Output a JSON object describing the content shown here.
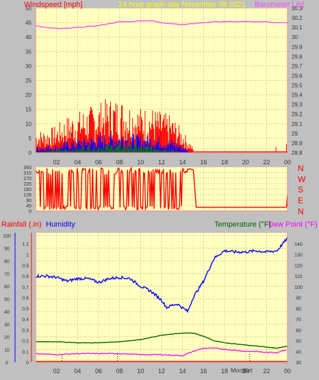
{
  "header": {
    "windspeed_label": "Windspeed [mph]",
    "title": "24 hour graph day   November 08 2021",
    "barometer_label": "Barometer [.in]"
  },
  "colors": {
    "plot_bg": "#ffffc0",
    "grid": "#d8c890",
    "wind_gust": "#ff0000",
    "wind_avg": "#0000ff",
    "wind_low": "#008000",
    "barometer": "#ff40ff",
    "direction": "#ff0000",
    "humidity": "#0000ff",
    "temperature": "#006400",
    "dewpoint": "#ff00ff",
    "title": "#ffff00",
    "rain": "#ff0000"
  },
  "lower_header": {
    "rainfall_label": "Rainfall (.in)",
    "humidity_label": "Humidity",
    "temperature_label": "Temperature (°F)",
    "dewpoint_label": "Dew Point (°F)"
  },
  "compass": [
    "N",
    "W",
    "S",
    "E",
    "N"
  ],
  "annotations": [
    "Moon",
    "Set"
  ],
  "chart_data": [
    {
      "type": "line",
      "id": "wind",
      "x_ticks": [
        "02",
        "04",
        "06",
        "08",
        "10",
        "12",
        "14",
        "16",
        "18",
        "20",
        "22",
        "00"
      ],
      "left_axis": {
        "label": "Windspeed [mph]",
        "ylim": [
          0,
          50
        ],
        "ticks": [
          0,
          5,
          10,
          15,
          20,
          25,
          30,
          35,
          40,
          45,
          50
        ]
      },
      "right_axis": {
        "label": "Barometer [.in]",
        "ylim": [
          28.8,
          30.3
        ],
        "ticks": [
          "28.8",
          "28.9",
          "29",
          "29.1",
          "29.2",
          "29.3",
          "29.4",
          "29.5",
          "29.6",
          "29.7",
          "29.8",
          "29.9",
          "30",
          "30.1",
          "30.2",
          "30.3"
        ]
      },
      "barometer": {
        "x": [
          0,
          1,
          2,
          3,
          4,
          5,
          6,
          7,
          8,
          9,
          10,
          11,
          12,
          13,
          14,
          15,
          16,
          17,
          18,
          19,
          20,
          21,
          22,
          23,
          24
        ],
        "y": [
          30.12,
          30.1,
          30.09,
          30.09,
          30.1,
          30.11,
          30.12,
          30.14,
          30.16,
          30.16,
          30.17,
          30.17,
          30.15,
          30.14,
          30.13,
          30.14,
          30.15,
          30.16,
          30.16,
          30.16,
          30.16,
          30.16,
          30.16,
          30.15,
          30.15
        ]
      },
      "wind_gust_envelope": {
        "x": [
          0,
          1,
          2,
          3,
          4,
          5,
          6,
          7,
          8,
          9,
          10,
          11,
          12,
          13,
          14,
          14.8,
          15.2
        ],
        "y": [
          5,
          5,
          6,
          8,
          9,
          10,
          11,
          12,
          12,
          11,
          10,
          10,
          9,
          8,
          5,
          2,
          0
        ]
      },
      "wind_avg_envelope": {
        "x": [
          0,
          1,
          2,
          3,
          4,
          5,
          6,
          7,
          8,
          9,
          10,
          11,
          12,
          13,
          14,
          14.8
        ],
        "y": [
          1.5,
          2,
          2,
          3,
          3.5,
          4,
          4.5,
          5,
          5,
          5,
          4.5,
          4.5,
          4,
          3.5,
          2,
          0
        ]
      },
      "wind_low_envelope": {
        "x": [
          0,
          1,
          2,
          3,
          4,
          5,
          6,
          7,
          8,
          9,
          10,
          11,
          12,
          13,
          14
        ],
        "y": [
          0.5,
          0.5,
          1,
          1,
          1.5,
          2,
          2,
          2.5,
          2.5,
          2.5,
          2,
          2,
          1.5,
          1,
          0
        ]
      }
    },
    {
      "type": "line",
      "id": "direction",
      "left_axis": {
        "ylim": [
          0,
          360
        ],
        "ticks": [
          0,
          45,
          90,
          135,
          180,
          225,
          270,
          315,
          360
        ]
      },
      "segments": [
        {
          "x0": 0,
          "x1": 4.5,
          "mode": "noisy"
        },
        {
          "x0": 4.5,
          "x1": 4.8,
          "mode": "high"
        },
        {
          "x0": 4.8,
          "x1": 14.5,
          "mode": "noisy"
        },
        {
          "x0": 14.5,
          "x1": 15.1,
          "mode": "high"
        }
      ],
      "calm_value": 30,
      "calm_from": 15.3,
      "end_value": 130
    },
    {
      "type": "line",
      "id": "lower",
      "x_ticks": [
        "02",
        "04",
        "06",
        "08",
        "10",
        "12",
        "14",
        "16",
        "18",
        "20",
        "22",
        "00"
      ],
      "rain_axis": {
        "label": "Rainfall (.in)",
        "ylim": [
          0,
          1.2
        ],
        "ticks": [
          "0",
          "0.1",
          "0.2",
          "0.3",
          "0.4",
          "0.5",
          "0.6",
          "0.7",
          "0.8",
          "0.9",
          "1",
          "1.1"
        ]
      },
      "humidity_axis": {
        "label": "Humidity",
        "ylim": [
          0,
          100
        ],
        "ticks": [
          0,
          10,
          20,
          30,
          40,
          50,
          60,
          70,
          80,
          90,
          100
        ]
      },
      "temp_axis": {
        "label": "Temperature (°F)",
        "ylim": [
          30,
          150
        ],
        "ticks": [
          30,
          40,
          50,
          60,
          70,
          80,
          90,
          100,
          110,
          120,
          130,
          140
        ]
      },
      "humidity": {
        "x": [
          0,
          1,
          2,
          3,
          4,
          5,
          6,
          7,
          8,
          9,
          10,
          11,
          12,
          12.5,
          13,
          13.5,
          14,
          14.5,
          15,
          16,
          17,
          18,
          19,
          20,
          21,
          22,
          23,
          23.5,
          24
        ],
        "y": [
          68,
          68,
          67,
          64,
          66,
          66,
          63,
          66,
          67,
          66,
          60,
          56,
          49,
          43,
          45,
          46,
          43,
          40,
          51,
          64,
          82,
          88,
          87,
          87,
          88,
          87,
          88,
          93,
          98
        ]
      },
      "temperature": {
        "x": [
          0,
          2,
          4,
          6,
          8,
          10,
          11,
          12,
          13,
          14,
          15,
          16,
          17,
          18,
          19,
          20,
          21,
          22,
          23,
          24
        ],
        "y": [
          49,
          49,
          48,
          48,
          49,
          51,
          53,
          55,
          56,
          57,
          57,
          54,
          50,
          48,
          47,
          46,
          45,
          44,
          43,
          45
        ]
      },
      "dewpoint": {
        "x": [
          0,
          2,
          4,
          6,
          8,
          10,
          12,
          14,
          15,
          16,
          17,
          18,
          19,
          20,
          21,
          22,
          23,
          24
        ],
        "y": [
          38,
          37,
          38,
          38,
          38,
          37,
          37,
          36,
          40,
          43,
          43,
          42,
          41,
          40,
          40,
          39,
          39,
          42
        ]
      },
      "rain": {
        "x": [
          0,
          24
        ],
        "y": [
          0,
          0
        ]
      }
    }
  ]
}
